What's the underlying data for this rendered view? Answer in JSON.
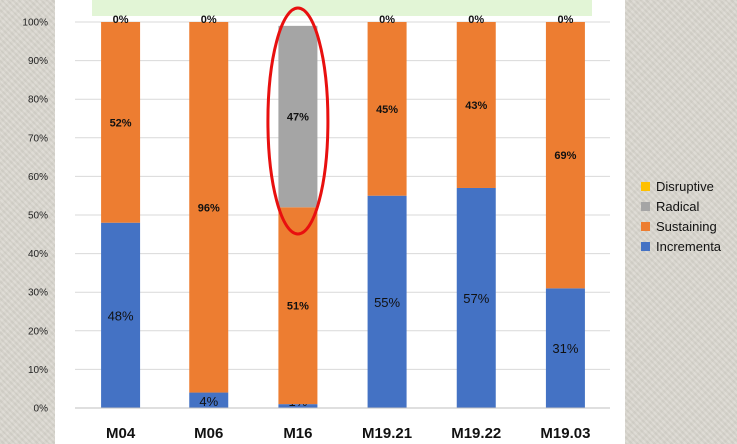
{
  "chart_data": {
    "type": "bar",
    "stacked": true,
    "categories": [
      "M04",
      "M06",
      "M16",
      "M19.21",
      "M19.22",
      "M19.03"
    ],
    "series": [
      {
        "name": "Incremental",
        "color": "#4472C4",
        "values": [
          48,
          4,
          1,
          55,
          57,
          31
        ],
        "labels": [
          "48%",
          "4%",
          "1%",
          "55%",
          "57%",
          "31%"
        ]
      },
      {
        "name": "Sustaining",
        "color": "#ED7D31",
        "values": [
          52,
          96,
          51,
          45,
          43,
          69
        ],
        "labels": [
          "52%",
          "96%",
          "51%",
          "45%",
          "43%",
          "69%"
        ]
      },
      {
        "name": "Radical",
        "color": "#A5A5A5",
        "values": [
          0,
          0,
          47,
          0,
          0,
          0
        ],
        "labels": [
          "",
          "",
          "47%",
          "",
          "",
          ""
        ]
      },
      {
        "name": "Disruptive",
        "color": "#FFC000",
        "values": [
          0,
          0,
          0,
          0,
          0,
          0
        ],
        "labels": [
          "0%",
          "0%",
          "",
          "0%",
          "0%",
          "0%"
        ]
      }
    ],
    "legend_labels": [
      "Disruptive",
      "Radical",
      "Sustaining",
      "Incrementa"
    ],
    "y_tick_labels": [
      "0%",
      "10%",
      "20%",
      "30%",
      "40%",
      "50%",
      "60%",
      "70%",
      "80%",
      "90%",
      "100%"
    ],
    "ylim": [
      0,
      100
    ],
    "legend_position": "right",
    "highlight": {
      "category": "M16",
      "shape": "ellipse",
      "color": "#E8100F"
    },
    "plot_background": "#FFFFFF",
    "header_band_color": "#E2F5D6"
  }
}
